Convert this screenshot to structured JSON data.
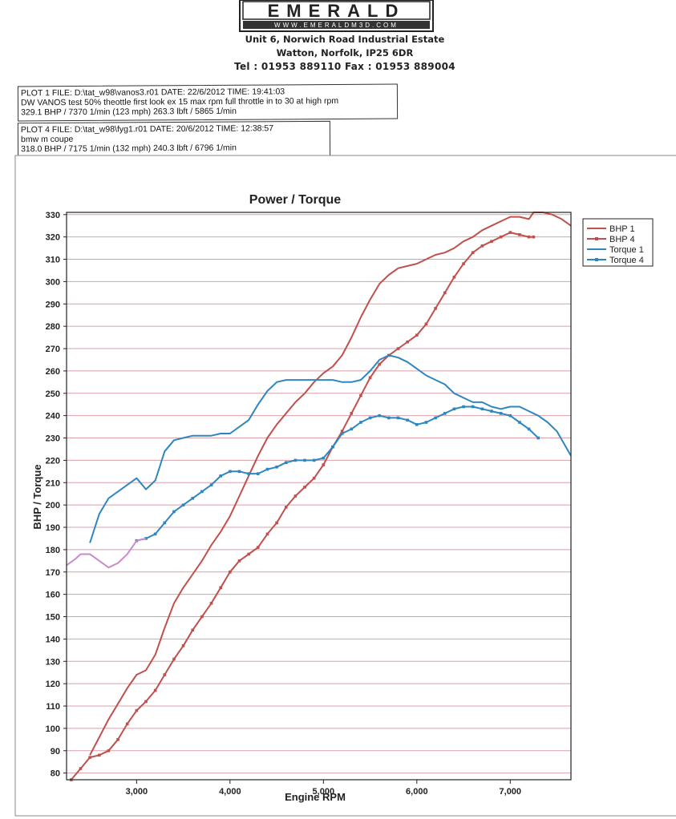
{
  "header": {
    "brand": "EMERALD",
    "website": "WWW.EMERALDM3D.COM",
    "address_line1": "Unit 6, Norwich Road Industrial Estate",
    "address_line2": "Watton, Norfolk, IP25 6DR",
    "phone_line": "Tel : 01953 889110   Fax : 01953 889004"
  },
  "plot1": {
    "line1": "PLOT 1 FILE: D:\\tat_w98\\vanos3.r01  DATE: 22/6/2012  TIME: 19:41:03",
    "line2": "DW VANOS test 50% theottle first look ex 15 max rpm full throttle in to 30 at high rpm",
    "line3": "329.1 BHP / 7370 1/min (123 mph)    263.3 lbft / 5865 1/min"
  },
  "plot4": {
    "line1": "PLOT 4 FILE: D:\\tat_w98\\fyg1.r01  DATE: 20/6/2012  TIME: 12:38:57",
    "line2": "bmw m coupe",
    "line3": "318.0 BHP / 7175 1/min (132 mph)    240.3 lbft / 6796 1/min"
  },
  "chart_data": {
    "type": "line",
    "title": "Power / Torque",
    "xlabel": "Engine RPM",
    "ylabel": "BHP / Torque",
    "xlim": [
      2250,
      7650
    ],
    "ylim": [
      77,
      331
    ],
    "xticks": [
      3000,
      4000,
      5000,
      6000,
      7000
    ],
    "xtick_labels": [
      "3,000",
      "4,000",
      "5,000",
      "6,000",
      "7,000"
    ],
    "yticks": [
      80,
      90,
      100,
      110,
      120,
      130,
      140,
      150,
      160,
      170,
      180,
      190,
      200,
      210,
      220,
      230,
      240,
      250,
      260,
      270,
      280,
      290,
      300,
      310,
      320,
      330
    ],
    "grid": "horizontal",
    "legend_position": "right",
    "colors": {
      "bhp": "#c0504d",
      "torque": "#2e86c1",
      "torque_low": "#c98bc9",
      "grid": "#d9a0a8"
    },
    "series": [
      {
        "name": "BHP 1",
        "color": "#c0504d",
        "markers": false,
        "x": [
          2500,
          2600,
          2700,
          2800,
          2900,
          3000,
          3100,
          3200,
          3300,
          3400,
          3500,
          3600,
          3700,
          3800,
          3900,
          4000,
          4100,
          4200,
          4300,
          4400,
          4500,
          4600,
          4700,
          4800,
          4900,
          5000,
          5100,
          5200,
          5300,
          5400,
          5500,
          5600,
          5700,
          5800,
          5900,
          6000,
          6100,
          6200,
          6300,
          6400,
          6500,
          6600,
          6700,
          6800,
          6900,
          7000,
          7100,
          7200,
          7250,
          7350,
          7450,
          7550,
          7650
        ],
        "y": [
          88,
          96,
          104,
          111,
          118,
          124,
          126,
          133,
          145,
          156,
          163,
          169,
          175,
          182,
          188,
          195,
          204,
          213,
          222,
          230,
          236,
          241,
          246,
          250,
          255,
          259,
          262,
          267,
          275,
          284,
          292,
          299,
          303,
          306,
          307,
          308,
          310,
          312,
          313,
          315,
          318,
          320,
          323,
          325,
          327,
          329,
          329,
          328,
          331,
          331,
          330,
          328,
          325
        ]
      },
      {
        "name": "BHP 4",
        "color": "#c0504d",
        "markers": true,
        "x": [
          2300,
          2400,
          2500,
          2600,
          2700,
          2800,
          2900,
          3000,
          3100,
          3200,
          3300,
          3400,
          3500,
          3600,
          3700,
          3800,
          3900,
          4000,
          4100,
          4200,
          4300,
          4400,
          4500,
          4600,
          4700,
          4800,
          4900,
          5000,
          5100,
          5200,
          5300,
          5400,
          5500,
          5600,
          5700,
          5800,
          5900,
          6000,
          6100,
          6200,
          6300,
          6400,
          6500,
          6600,
          6700,
          6800,
          6900,
          7000,
          7100,
          7200,
          7250
        ],
        "y": [
          77,
          82,
          87,
          88,
          90,
          95,
          102,
          108,
          112,
          117,
          124,
          131,
          137,
          144,
          150,
          156,
          163,
          170,
          175,
          178,
          181,
          187,
          192,
          199,
          204,
          208,
          212,
          218,
          226,
          233,
          241,
          249,
          257,
          263,
          267,
          270,
          273,
          276,
          281,
          288,
          295,
          302,
          308,
          313,
          316,
          318,
          320,
          322,
          321,
          320,
          320
        ]
      },
      {
        "name": "Torque 1",
        "color": "#2e86c1",
        "markers": false,
        "x": [
          2500,
          2600,
          2700,
          2800,
          2900,
          3000,
          3100,
          3200,
          3300,
          3400,
          3500,
          3600,
          3700,
          3800,
          3900,
          4000,
          4100,
          4200,
          4300,
          4400,
          4500,
          4600,
          4700,
          4800,
          4900,
          5000,
          5100,
          5200,
          5300,
          5400,
          5500,
          5600,
          5700,
          5800,
          5900,
          6000,
          6100,
          6200,
          6300,
          6400,
          6500,
          6600,
          6700,
          6800,
          6900,
          7000,
          7100,
          7200,
          7300,
          7400,
          7500,
          7650
        ],
        "y": [
          183,
          196,
          203,
          206,
          209,
          212,
          207,
          211,
          224,
          229,
          230,
          231,
          231,
          231,
          232,
          232,
          235,
          238,
          245,
          251,
          255,
          256,
          256,
          256,
          256,
          256,
          256,
          255,
          255,
          256,
          260,
          265,
          267,
          266,
          264,
          261,
          258,
          256,
          254,
          250,
          248,
          246,
          246,
          244,
          243,
          244,
          244,
          242,
          240,
          237,
          233,
          222
        ]
      },
      {
        "name": "Torque 4",
        "color": "#2e86c1",
        "markers": true,
        "x": [
          3000,
          3100,
          3200,
          3300,
          3400,
          3500,
          3600,
          3700,
          3800,
          3900,
          4000,
          4100,
          4200,
          4300,
          4400,
          4500,
          4600,
          4700,
          4800,
          4900,
          5000,
          5100,
          5200,
          5300,
          5400,
          5500,
          5600,
          5700,
          5800,
          5900,
          6000,
          6100,
          6200,
          6300,
          6400,
          6500,
          6600,
          6700,
          6800,
          6900,
          7000,
          7100,
          7200,
          7300
        ],
        "y": [
          184,
          185,
          187,
          192,
          197,
          200,
          203,
          206,
          209,
          213,
          215,
          215,
          214,
          214,
          216,
          217,
          219,
          220,
          220,
          220,
          221,
          226,
          232,
          234,
          237,
          239,
          240,
          239,
          239,
          238,
          236,
          237,
          239,
          241,
          243,
          244,
          244,
          243,
          242,
          241,
          240,
          237,
          234,
          230
        ]
      },
      {
        "name": "Torque 4 (low rpm)",
        "color": "#c98bc9",
        "markers": false,
        "legend": false,
        "x": [
          2250,
          2350,
          2400,
          2500,
          2600,
          2700,
          2800,
          2900,
          3000,
          3100
        ],
        "y": [
          173,
          176,
          178,
          178,
          175,
          172,
          174,
          178,
          184,
          185
        ]
      }
    ]
  }
}
